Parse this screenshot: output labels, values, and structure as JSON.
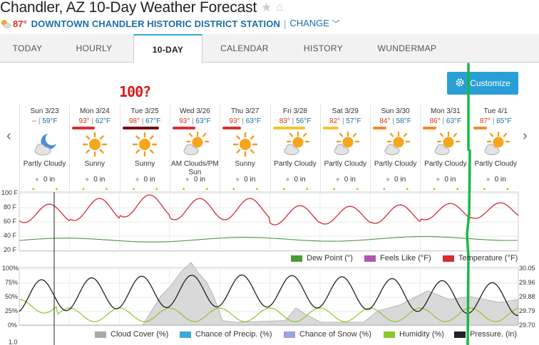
{
  "header": {
    "title": "Chandler, AZ 10-Day Weather Forecast",
    "current_temp": "87°",
    "station_name": "DOWNTOWN CHANDLER HISTORIC DISTRICT STATION",
    "separator": "|",
    "change_label": "CHANGE"
  },
  "tabs": [
    {
      "label": "TODAY"
    },
    {
      "label": "HOURLY"
    },
    {
      "label": "10-DAY",
      "active": true
    },
    {
      "label": "CALENDAR"
    },
    {
      "label": "HISTORY"
    },
    {
      "label": "WUNDERMAP"
    }
  ],
  "customize_label": "Customize",
  "annotation_text": "100?",
  "days": [
    {
      "date": "Sun 3/23",
      "high": "--",
      "low": "59°F",
      "icon": "moon-cloud-icon",
      "condition": "Partly Cloudy",
      "precip": "0 in",
      "bar_color": "",
      "bar_frac": 0
    },
    {
      "date": "Mon 3/24",
      "high": "93°",
      "low": "62°F",
      "icon": "sun-icon",
      "condition": "Sunny",
      "precip": "0 in",
      "bar_color": "#d63031",
      "bar_frac": 0.5
    },
    {
      "date": "Tue 3/25",
      "high": "98°",
      "low": "67°F",
      "icon": "sun-icon",
      "condition": "Sunny",
      "precip": "0 in",
      "bar_color": "#7a0d14",
      "bar_frac": 0.8
    },
    {
      "date": "Wed 3/26",
      "high": "93°",
      "low": "63°F",
      "icon": "partly-cloudy-icon",
      "condition": "AM Clouds/PM Sun",
      "precip": "0 in",
      "bar_color": "#d63031",
      "bar_frac": 0.5
    },
    {
      "date": "Thu 3/27",
      "high": "93°",
      "low": "63°F",
      "icon": "sun-icon",
      "condition": "Sunny",
      "precip": "0 in",
      "bar_color": "#d63031",
      "bar_frac": 0.4
    },
    {
      "date": "Fri 3/28",
      "high": "83°",
      "low": "56°F",
      "icon": "partly-cloudy-icon",
      "condition": "Partly Cloudy",
      "precip": "0 in",
      "bar_color": "#f4c430",
      "bar_frac": 0.7
    },
    {
      "date": "Sat 3/29",
      "high": "82°",
      "low": "57°F",
      "icon": "partly-cloudy-icon",
      "condition": "Partly Cloudy",
      "precip": "0 in",
      "bar_color": "#f4c430",
      "bar_frac": 0.35
    },
    {
      "date": "Sun 3/30",
      "high": "84°",
      "low": "58°F",
      "icon": "partly-cloudy-icon",
      "condition": "Partly Cloudy",
      "precip": "0 in",
      "bar_color": "#f5892a",
      "bar_frac": 0.3
    },
    {
      "date": "Mon 3/31",
      "high": "86°",
      "low": "63°F",
      "icon": "partly-cloudy-icon",
      "condition": "Partly Cloudy",
      "precip": "0 in",
      "bar_color": "#f5892a",
      "bar_frac": 0.3
    },
    {
      "date": "Tue 4/1",
      "high": "87°",
      "low": "65°F",
      "icon": "partly-cloudy-icon",
      "condition": "Partly Cloudy",
      "precip": "0 in",
      "bar_color": "#f5892a",
      "bar_frac": 0.3
    }
  ],
  "temp_chart": {
    "y_labels": [
      "100 F",
      "80 F",
      "60 F",
      "40 F",
      "20 F"
    ],
    "legend": [
      {
        "label": "Dew Point (°)",
        "color": "#4a9a3a"
      },
      {
        "label": "Feels Like (°F)",
        "color": "#b055b0"
      },
      {
        "label": "Temperature (°F)",
        "color": "#d42a35"
      }
    ]
  },
  "cloud_chart": {
    "y_left_labels": [
      "100%",
      "75%",
      "50%",
      "25%",
      "0%"
    ],
    "y_right_labels": [
      "30.05",
      "29.96",
      "29.88",
      "29.79",
      "29.70"
    ],
    "legend": [
      {
        "label": "Cloud Cover (%)",
        "color": "#a9a9a9"
      },
      {
        "label": "Chance of Precip. (%)",
        "color": "#3aa8d8"
      },
      {
        "label": "Chance of Snow (%)",
        "color": "#8fa8e8"
      },
      {
        "label": "Humidity (%)",
        "color": "#8bc82a"
      },
      {
        "label": "Pressure. (in)",
        "color": "#222222"
      }
    ]
  },
  "bottom_axis_label": "1.0",
  "colors": {
    "accent": "#2a9fd6",
    "station_link": "#1a6ea8",
    "annotation": "#16b84a"
  }
}
